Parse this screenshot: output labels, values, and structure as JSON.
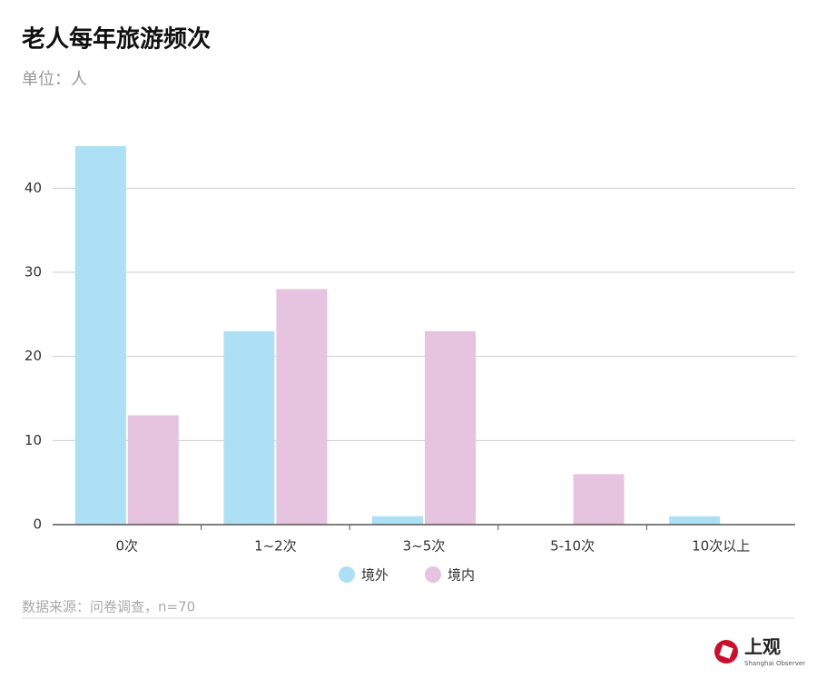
{
  "chart_data": {
    "type": "bar",
    "title": "老人每年旅游频次",
    "subtitle": "单位：人",
    "categories": [
      "0次",
      "1~2次",
      "3~5次",
      "5-10次",
      "10次以上"
    ],
    "series": [
      {
        "name": "境外",
        "color": "#aee0f5",
        "values": [
          45,
          23,
          1,
          0,
          1
        ]
      },
      {
        "name": "境内",
        "color": "#e6c3de",
        "values": [
          13,
          28,
          23,
          6,
          0
        ]
      }
    ],
    "ylim": [
      0,
      45
    ],
    "yticks": [
      0,
      10,
      20,
      30,
      40
    ],
    "grid": true,
    "legend": "bottom",
    "source": "数据来源：问卷调查，n=70"
  },
  "logo": {
    "text": "上观",
    "subtitle": "Shanghai Observer"
  }
}
